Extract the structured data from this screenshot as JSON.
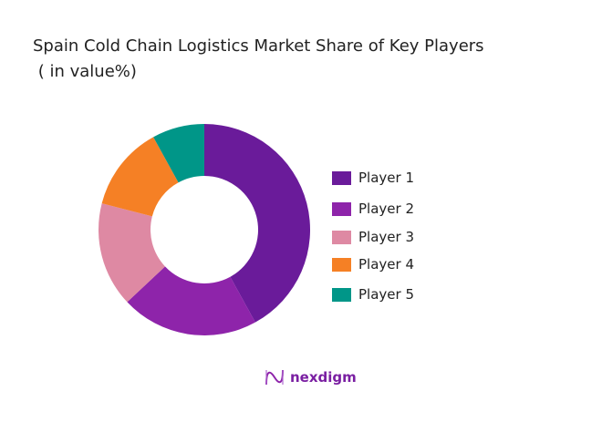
{
  "chart_data": {
    "type": "pie",
    "donut": true,
    "title": "Spain Cold Chain Logistics Market Share of Key Players",
    "subtitle": " ( in value%)",
    "categories": [
      "Player 1",
      "Player 2",
      "Player 3",
      "Player 4",
      "Player 5"
    ],
    "values": [
      42,
      21,
      16,
      13,
      8
    ],
    "colors": [
      "#6a1b9a",
      "#8e24aa",
      "#de89a3",
      "#f58025",
      "#009688"
    ],
    "legend_position": "right"
  },
  "brand": {
    "name": "nexdigm",
    "color": "#7a1fa2"
  }
}
